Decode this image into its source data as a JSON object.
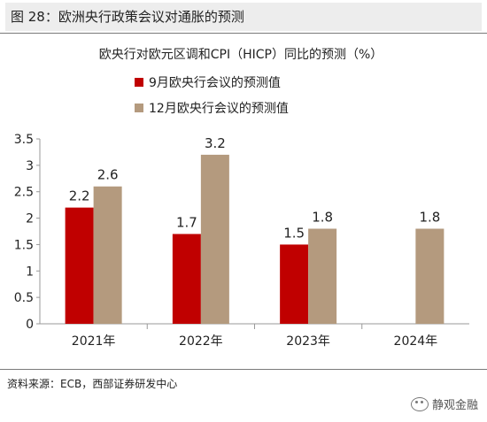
{
  "figure_title": "图 28：欧洲央行政策会议对通胀的预测",
  "source": "资料来源：ECB，西部证券研发中心",
  "watermark": "静观金融",
  "chart_data": {
    "type": "bar",
    "title": "欧央行对欧元区调和CPI（HICP）同比的预测（%）",
    "categories": [
      "2021年",
      "2022年",
      "2023年",
      "2024年"
    ],
    "series": [
      {
        "name": "9月欧央行会议的预测值",
        "color": "#c00000",
        "values": [
          2.2,
          1.7,
          1.5,
          null
        ],
        "labels": [
          "2.2",
          "1.7",
          "1.5",
          ""
        ]
      },
      {
        "name": "12月欧央行会议的预测值",
        "color": "#b49a7e",
        "values": [
          2.6,
          3.2,
          1.8,
          1.8
        ],
        "labels": [
          "2.6",
          "3.2",
          "1.8",
          "1.8"
        ]
      }
    ],
    "ylim": [
      0,
      3.5
    ],
    "yticks": [
      "0",
      "0.5",
      "1",
      "1.5",
      "2",
      "2.5",
      "3",
      "3.5"
    ],
    "grid": false,
    "legend": "top-left"
  }
}
